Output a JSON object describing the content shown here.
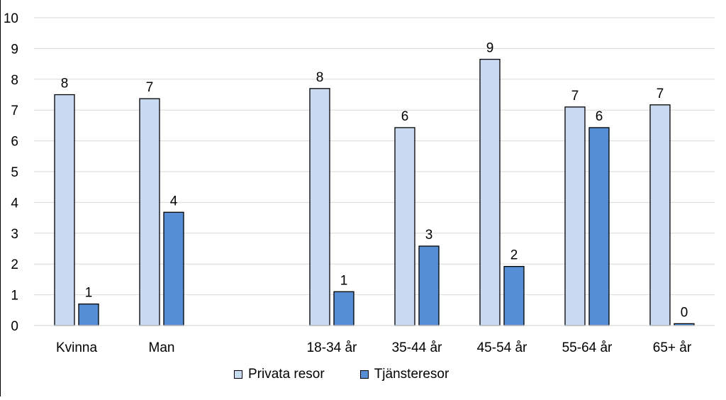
{
  "chart_data": {
    "type": "bar",
    "categories": [
      "Kvinna",
      "Man",
      "",
      "18-34 år",
      "35-44 år",
      "45-54 år",
      "55-64 år",
      "65+ år"
    ],
    "series": [
      {
        "name": "Privata resor",
        "color": "#c9d9f1",
        "values": [
          7.5,
          7.37,
          null,
          7.7,
          6.43,
          8.65,
          7.1,
          7.17
        ],
        "labels": [
          "8",
          "7",
          "",
          "8",
          "6",
          "9",
          "7",
          "7"
        ]
      },
      {
        "name": "Tjänsteresor",
        "color": "#558ed5",
        "values": [
          0.7,
          3.68,
          null,
          1.1,
          2.58,
          1.92,
          6.43,
          0.06
        ],
        "labels": [
          "1",
          "4",
          "",
          "1",
          "3",
          "2",
          "6",
          "0"
        ]
      }
    ],
    "ylim": [
      0,
      10
    ],
    "yticks": [
      "0",
      "1",
      "2",
      "3",
      "4",
      "5",
      "6",
      "7",
      "8",
      "9",
      "10"
    ],
    "grid": true,
    "legend": "bottom",
    "title": "",
    "xlabel": "",
    "ylabel": ""
  }
}
